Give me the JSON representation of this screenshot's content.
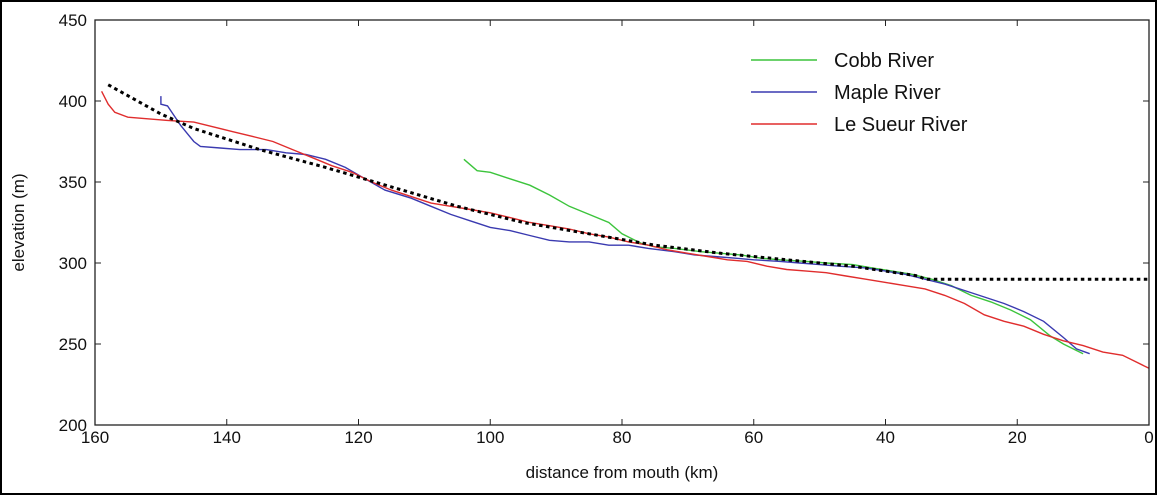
{
  "chart_data": {
    "type": "line",
    "title": "",
    "xlabel": "distance from mouth (km)",
    "ylabel": "elevation (m)",
    "xlim": [
      160,
      0
    ],
    "ylim": [
      200,
      450
    ],
    "x_reversed": true,
    "x_ticks": [
      160,
      140,
      120,
      100,
      80,
      60,
      40,
      20,
      0
    ],
    "y_ticks": [
      200,
      250,
      300,
      350,
      400,
      450
    ],
    "grid": false,
    "legend_position": "top-right",
    "series": [
      {
        "name": "Cobb River",
        "color": "#3cc43c",
        "style": "solid",
        "points": [
          [
            104,
            364
          ],
          [
            102,
            357
          ],
          [
            100,
            356
          ],
          [
            97,
            352
          ],
          [
            94,
            348
          ],
          [
            91,
            342
          ],
          [
            88,
            335
          ],
          [
            85,
            330
          ],
          [
            82,
            325
          ],
          [
            80,
            318
          ],
          [
            77,
            312
          ],
          [
            75,
            310
          ],
          [
            72,
            309
          ],
          [
            68,
            307
          ],
          [
            65,
            306
          ],
          [
            62,
            305
          ],
          [
            59,
            303
          ],
          [
            56,
            302
          ],
          [
            52,
            301
          ],
          [
            49,
            300
          ],
          [
            45,
            299
          ],
          [
            42,
            297
          ],
          [
            39,
            295
          ],
          [
            36,
            293
          ],
          [
            33,
            290
          ],
          [
            30,
            286
          ],
          [
            27,
            280
          ],
          [
            24,
            276
          ],
          [
            21,
            271
          ],
          [
            18,
            265
          ],
          [
            15,
            255
          ],
          [
            13,
            250
          ],
          [
            11,
            246
          ],
          [
            10,
            244
          ]
        ]
      },
      {
        "name": "Maple River",
        "color": "#3a3ab0",
        "style": "solid",
        "points": [
          [
            150,
            403
          ],
          [
            150,
            398
          ],
          [
            149,
            397
          ],
          [
            148,
            391
          ],
          [
            147,
            385
          ],
          [
            146,
            380
          ],
          [
            145,
            375
          ],
          [
            144,
            372
          ],
          [
            141,
            371
          ],
          [
            138,
            370
          ],
          [
            134,
            370
          ],
          [
            131,
            368
          ],
          [
            128,
            367
          ],
          [
            125,
            364
          ],
          [
            122,
            359
          ],
          [
            119,
            352
          ],
          [
            116,
            345
          ],
          [
            112,
            340
          ],
          [
            109,
            335
          ],
          [
            106,
            330
          ],
          [
            103,
            326
          ],
          [
            100,
            322
          ],
          [
            97,
            320
          ],
          [
            94,
            317
          ],
          [
            91,
            314
          ],
          [
            88,
            313
          ],
          [
            85,
            313
          ],
          [
            82,
            311
          ],
          [
            79,
            311
          ],
          [
            76,
            309
          ],
          [
            72,
            307
          ],
          [
            69,
            305
          ],
          [
            66,
            304
          ],
          [
            63,
            303
          ],
          [
            60,
            302
          ],
          [
            56,
            301
          ],
          [
            53,
            300
          ],
          [
            50,
            299
          ],
          [
            47,
            298
          ],
          [
            43,
            297
          ],
          [
            40,
            295
          ],
          [
            37,
            293
          ],
          [
            34,
            290
          ],
          [
            31,
            287
          ],
          [
            28,
            283
          ],
          [
            25,
            279
          ],
          [
            22,
            275
          ],
          [
            19,
            270
          ],
          [
            16,
            264
          ],
          [
            13,
            254
          ],
          [
            11,
            247
          ],
          [
            9,
            244
          ]
        ]
      },
      {
        "name": "Le Sueur River",
        "color": "#e02d2d",
        "style": "solid",
        "points": [
          [
            159,
            406
          ],
          [
            158,
            398
          ],
          [
            157,
            393
          ],
          [
            155,
            390
          ],
          [
            152,
            389
          ],
          [
            149,
            388
          ],
          [
            145,
            387
          ],
          [
            142,
            384
          ],
          [
            139,
            381
          ],
          [
            136,
            378
          ],
          [
            133,
            375
          ],
          [
            130,
            370
          ],
          [
            127,
            365
          ],
          [
            124,
            360
          ],
          [
            121,
            356
          ],
          [
            118,
            350
          ],
          [
            115,
            345
          ],
          [
            112,
            341
          ],
          [
            109,
            337
          ],
          [
            106,
            335
          ],
          [
            103,
            333
          ],
          [
            100,
            331
          ],
          [
            97,
            328
          ],
          [
            94,
            325
          ],
          [
            91,
            323
          ],
          [
            88,
            321
          ],
          [
            85,
            318
          ],
          [
            82,
            316
          ],
          [
            79,
            313
          ],
          [
            76,
            311
          ],
          [
            73,
            308
          ],
          [
            70,
            306
          ],
          [
            67,
            304
          ],
          [
            64,
            302
          ],
          [
            61,
            301
          ],
          [
            58,
            298
          ],
          [
            55,
            296
          ],
          [
            52,
            295
          ],
          [
            49,
            294
          ],
          [
            46,
            292
          ],
          [
            43,
            290
          ],
          [
            40,
            288
          ],
          [
            37,
            286
          ],
          [
            34,
            284
          ],
          [
            31,
            280
          ],
          [
            28,
            275
          ],
          [
            25,
            268
          ],
          [
            22,
            264
          ],
          [
            19,
            261
          ],
          [
            16,
            256
          ],
          [
            13,
            252
          ],
          [
            10,
            249
          ],
          [
            7,
            245
          ],
          [
            4,
            243
          ],
          [
            2,
            239
          ],
          [
            0,
            235
          ]
        ]
      },
      {
        "name": "",
        "color": "#000000",
        "style": "dotted",
        "points": [
          [
            158,
            410
          ],
          [
            150,
            392
          ],
          [
            145,
            383
          ],
          [
            135,
            370
          ],
          [
            125,
            359
          ],
          [
            115,
            347
          ],
          [
            105,
            335
          ],
          [
            95,
            325
          ],
          [
            85,
            318
          ],
          [
            75,
            311
          ],
          [
            65,
            306
          ],
          [
            55,
            302
          ],
          [
            45,
            298
          ],
          [
            35,
            292
          ],
          [
            34,
            290
          ],
          [
            0,
            290
          ]
        ]
      }
    ]
  }
}
